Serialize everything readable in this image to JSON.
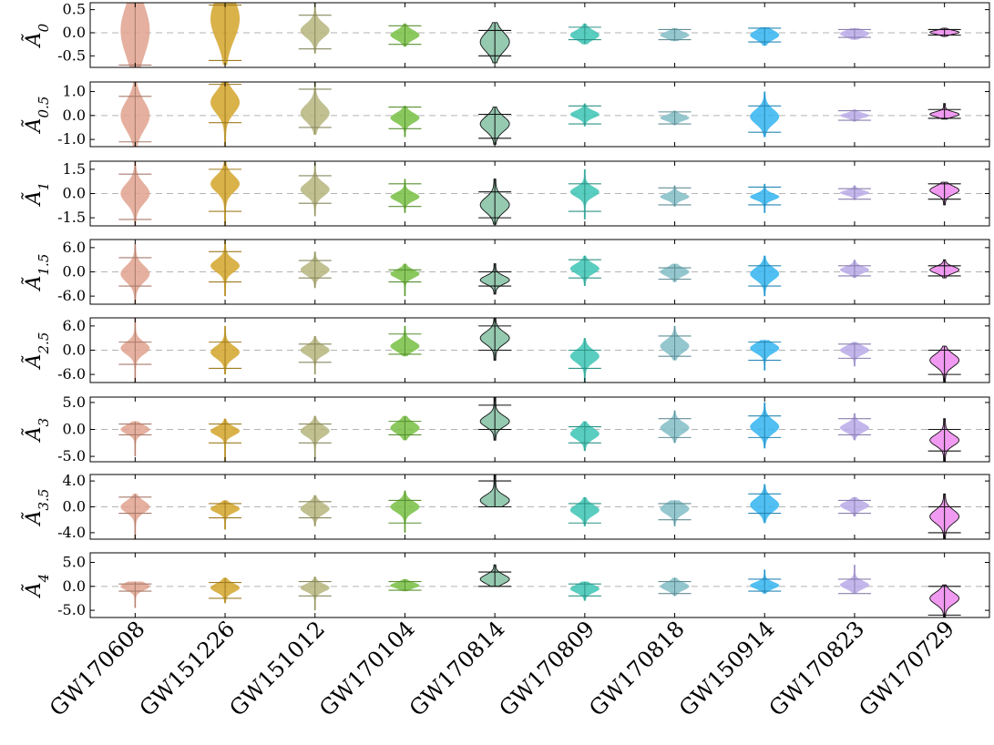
{
  "chart_data": {
    "type": "violin",
    "categories": [
      "GW170608",
      "GW151226",
      "GW151012",
      "GW170104",
      "GW170814",
      "GW170809",
      "GW170818",
      "GW150914",
      "GW170823",
      "GW170729"
    ],
    "colors": [
      "#e0a28e",
      "#d4a52a",
      "#b5b57e",
      "#77c043",
      "#82bfa2",
      "#3cc4b4",
      "#83bdc7",
      "#33b4f0",
      "#b8a9e8",
      "#ee88ee"
    ],
    "panels": [
      {
        "ylabel_main": "Ã",
        "ylabel_sub": "0",
        "ylim": [
          -0.75,
          0.65
        ],
        "yticks": [
          0.5,
          0.0,
          -0.5
        ],
        "ytick_labels": [
          "0.5",
          "0.0",
          "-0.5"
        ],
        "stats": [
          {
            "center": 0.05,
            "spread": 0.55,
            "min": -0.75,
            "max": 0.65,
            "q_low": -0.7,
            "q_high": 0.65
          },
          {
            "center": 0.3,
            "spread": 0.45,
            "min": -0.7,
            "max": 0.65,
            "q_low": -0.6,
            "q_high": 0.6
          },
          {
            "center": 0.05,
            "spread": 0.15,
            "min": -0.45,
            "max": 0.65,
            "q_low": -0.35,
            "q_high": 0.38
          },
          {
            "center": -0.05,
            "spread": 0.1,
            "min": -0.3,
            "max": 0.2,
            "q_low": -0.25,
            "q_high": 0.15
          },
          {
            "center": -0.2,
            "spread": 0.2,
            "min": -0.65,
            "max": 0.22,
            "q_low": -0.5,
            "q_high": 0.05
          },
          {
            "center": -0.05,
            "spread": 0.1,
            "min": -0.25,
            "max": 0.2,
            "q_low": -0.15,
            "q_high": 0.12
          },
          {
            "center": -0.05,
            "spread": 0.07,
            "min": -0.18,
            "max": 0.1,
            "q_low": -0.15,
            "q_high": 0.07
          },
          {
            "center": -0.05,
            "spread": 0.1,
            "min": -0.28,
            "max": 0.12,
            "q_low": -0.2,
            "q_high": 0.1
          },
          {
            "center": -0.02,
            "spread": 0.07,
            "min": -0.15,
            "max": 0.1,
            "q_low": -0.1,
            "q_high": 0.07
          },
          {
            "center": 0.01,
            "spread": 0.04,
            "min": -0.08,
            "max": 0.1,
            "q_low": -0.05,
            "q_high": 0.07
          }
        ]
      },
      {
        "ylabel_main": "Ã",
        "ylabel_sub": "0.5",
        "ylim": [
          -1.3,
          1.4
        ],
        "yticks": [
          1.0,
          0.0,
          -1.0
        ],
        "ytick_labels": [
          "1.0",
          "0.0",
          "-1.0"
        ],
        "stats": [
          {
            "center": 0.0,
            "spread": 0.6,
            "min": -1.3,
            "max": 1.4,
            "q_low": -1.1,
            "q_high": 0.8
          },
          {
            "center": 0.55,
            "spread": 0.45,
            "min": -1.3,
            "max": 1.4,
            "q_low": -0.3,
            "q_high": 1.3
          },
          {
            "center": 0.1,
            "spread": 0.35,
            "min": -0.8,
            "max": 1.4,
            "q_low": -0.5,
            "q_high": 1.1
          },
          {
            "center": -0.1,
            "spread": 0.2,
            "min": -0.9,
            "max": 0.4,
            "q_low": -0.55,
            "q_high": 0.35
          },
          {
            "center": -0.35,
            "spread": 0.3,
            "min": -1.2,
            "max": 0.35,
            "q_low": -0.95,
            "q_high": 0.05
          },
          {
            "center": 0.05,
            "spread": 0.15,
            "min": -0.45,
            "max": 0.5,
            "q_low": -0.35,
            "q_high": 0.4
          },
          {
            "center": -0.1,
            "spread": 0.12,
            "min": -0.4,
            "max": 0.2,
            "q_low": -0.35,
            "q_high": 0.15
          },
          {
            "center": -0.05,
            "spread": 0.3,
            "min": -0.9,
            "max": 1.0,
            "q_low": -0.7,
            "q_high": 0.4
          },
          {
            "center": 0.0,
            "spread": 0.1,
            "min": -0.25,
            "max": 0.25,
            "q_low": -0.2,
            "q_high": 0.2
          },
          {
            "center": 0.05,
            "spread": 0.1,
            "min": -0.15,
            "max": 0.5,
            "q_low": -0.12,
            "q_high": 0.25
          }
        ]
      },
      {
        "ylabel_main": "Ã",
        "ylabel_sub": "1",
        "ylim": [
          -2.0,
          2.0
        ],
        "yticks": [
          1.5,
          0.0,
          -1.5
        ],
        "ytick_labels": [
          "1.5",
          "0.0",
          "-1.5"
        ],
        "stats": [
          {
            "center": 0.0,
            "spread": 0.6,
            "min": -2.0,
            "max": 2.0,
            "q_low": -1.6,
            "q_high": 1.2
          },
          {
            "center": 0.6,
            "spread": 0.5,
            "min": -2.0,
            "max": 2.0,
            "q_low": -1.1,
            "q_high": 1.5
          },
          {
            "center": 0.25,
            "spread": 0.4,
            "min": -1.4,
            "max": 1.9,
            "q_low": -0.6,
            "q_high": 1.1
          },
          {
            "center": -0.2,
            "spread": 0.25,
            "min": -1.2,
            "max": 0.9,
            "q_low": -0.8,
            "q_high": 0.6
          },
          {
            "center": -0.7,
            "spread": 0.45,
            "min": -1.9,
            "max": 0.9,
            "q_low": -1.5,
            "q_high": 0.1
          },
          {
            "center": 0.1,
            "spread": 0.3,
            "min": -1.6,
            "max": 1.5,
            "q_low": -1.1,
            "q_high": 0.6
          },
          {
            "center": -0.2,
            "spread": 0.2,
            "min": -0.8,
            "max": 0.5,
            "q_low": -0.7,
            "q_high": 0.35
          },
          {
            "center": -0.2,
            "spread": 0.2,
            "min": -1.2,
            "max": 0.6,
            "q_low": -0.7,
            "q_high": 0.4
          },
          {
            "center": 0.05,
            "spread": 0.15,
            "min": -0.4,
            "max": 0.5,
            "q_low": -0.35,
            "q_high": 0.3
          },
          {
            "center": 0.2,
            "spread": 0.25,
            "min": -0.7,
            "max": 0.7,
            "q_low": -0.35,
            "q_high": 0.6
          }
        ]
      },
      {
        "ylabel_main": "Ã",
        "ylabel_sub": "1.5",
        "ylim": [
          -8.0,
          8.0
        ],
        "yticks": [
          6.0,
          0.0,
          -6.0
        ],
        "ytick_labels": [
          "6.0",
          "0.0",
          "-6.0"
        ],
        "stats": [
          {
            "center": -0.5,
            "spread": 2.0,
            "min": -8.0,
            "max": 7.0,
            "q_low": -3.5,
            "q_high": 3.5
          },
          {
            "center": 1.5,
            "spread": 1.5,
            "min": -6.0,
            "max": 8.0,
            "q_low": -2.5,
            "q_high": 5.0
          },
          {
            "center": 0.5,
            "spread": 1.3,
            "min": -4.0,
            "max": 5.0,
            "q_low": -1.5,
            "q_high": 2.8
          },
          {
            "center": -0.5,
            "spread": 1.0,
            "min": -6.0,
            "max": 2.0,
            "q_low": -2.5,
            "q_high": 0.5
          },
          {
            "center": -2.0,
            "spread": 1.0,
            "min": -5.5,
            "max": 2.0,
            "q_low": -3.5,
            "q_high": 0.0
          },
          {
            "center": 0.8,
            "spread": 1.2,
            "min": -3.5,
            "max": 4.0,
            "q_low": -1.5,
            "q_high": 3.0
          },
          {
            "center": 0.0,
            "spread": 1.0,
            "min": -2.5,
            "max": 2.0,
            "q_low": -1.8,
            "q_high": 1.0
          },
          {
            "center": -0.5,
            "spread": 1.5,
            "min": -6.0,
            "max": 4.0,
            "q_low": -3.5,
            "q_high": 1.5
          },
          {
            "center": 0.5,
            "spread": 0.8,
            "min": -1.5,
            "max": 3.0,
            "q_low": -1.0,
            "q_high": 1.5
          },
          {
            "center": 0.5,
            "spread": 0.8,
            "min": -1.5,
            "max": 3.0,
            "q_low": -1.0,
            "q_high": 1.5
          }
        ]
      },
      {
        "ylabel_main": "Ã",
        "ylabel_sub": "2.5",
        "ylim": [
          -8.0,
          8.0
        ],
        "yticks": [
          6.0,
          0.0,
          -6.0
        ],
        "ytick_labels": [
          "6.0",
          "0.0",
          "-6.0"
        ],
        "stats": [
          {
            "center": 0.5,
            "spread": 1.5,
            "min": -8.0,
            "max": 8.0,
            "q_low": -3.5,
            "q_high": 2.0
          },
          {
            "center": -0.5,
            "spread": 1.5,
            "min": -6.0,
            "max": 6.0,
            "q_low": -4.5,
            "q_high": 2.0
          },
          {
            "center": 0.0,
            "spread": 1.2,
            "min": -6.0,
            "max": 3.5,
            "q_low": -3.0,
            "q_high": 1.5
          },
          {
            "center": 1.0,
            "spread": 1.2,
            "min": -1.5,
            "max": 6.0,
            "q_low": -1.0,
            "q_high": 4.0
          },
          {
            "center": 3.0,
            "spread": 1.5,
            "min": -2.5,
            "max": 8.0,
            "q_low": 0.0,
            "q_high": 6.0
          },
          {
            "center": -1.5,
            "spread": 1.5,
            "min": -8.0,
            "max": 3.0,
            "q_low": -4.5,
            "q_high": 0.0
          },
          {
            "center": 1.0,
            "spread": 1.5,
            "min": -2.5,
            "max": 6.0,
            "q_low": -1.5,
            "q_high": 3.5
          },
          {
            "center": 0.5,
            "spread": 1.2,
            "min": -5.0,
            "max": 2.5,
            "q_low": -2.5,
            "q_high": 2.0
          },
          {
            "center": 0.0,
            "spread": 1.0,
            "min": -4.0,
            "max": 2.0,
            "q_low": -2.0,
            "q_high": 1.5
          },
          {
            "center": -2.5,
            "spread": 1.5,
            "min": -8.0,
            "max": 1.0,
            "q_low": -6.0,
            "q_high": 0.0
          }
        ]
      },
      {
        "ylabel_main": "Ã",
        "ylabel_sub": "3",
        "ylim": [
          -6.0,
          6.0
        ],
        "yticks": [
          5.0,
          0.0,
          -5.0
        ],
        "ytick_labels": [
          "5.0",
          "0.0",
          "-5.0"
        ],
        "stats": [
          {
            "center": 0.0,
            "spread": 0.8,
            "min": -5.0,
            "max": 1.5,
            "q_low": -1.0,
            "q_high": 1.0
          },
          {
            "center": -0.3,
            "spread": 0.8,
            "min": -6.0,
            "max": 2.0,
            "q_low": -2.5,
            "q_high": 1.0
          },
          {
            "center": -0.3,
            "spread": 1.0,
            "min": -5.5,
            "max": 2.5,
            "q_low": -2.5,
            "q_high": 1.0
          },
          {
            "center": 0.3,
            "spread": 1.0,
            "min": -2.0,
            "max": 2.5,
            "q_low": -1.0,
            "q_high": 1.5
          },
          {
            "center": 1.5,
            "spread": 1.0,
            "min": -2.0,
            "max": 6.0,
            "q_low": 0.0,
            "q_high": 4.5
          },
          {
            "center": -0.8,
            "spread": 1.0,
            "min": -4.0,
            "max": 1.5,
            "q_low": -2.5,
            "q_high": 0.5
          },
          {
            "center": 0.3,
            "spread": 1.0,
            "min": -2.5,
            "max": 3.5,
            "q_low": -1.5,
            "q_high": 2.0
          },
          {
            "center": 0.5,
            "spread": 1.2,
            "min": -3.5,
            "max": 5.0,
            "q_low": -1.5,
            "q_high": 2.5
          },
          {
            "center": 0.3,
            "spread": 0.8,
            "min": -2.0,
            "max": 3.0,
            "q_low": -1.0,
            "q_high": 2.0
          },
          {
            "center": -2.0,
            "spread": 1.0,
            "min": -6.0,
            "max": 2.0,
            "q_low": -4.0,
            "q_high": 0.0
          }
        ]
      },
      {
        "ylabel_main": "Ã",
        "ylabel_sub": "3.5",
        "ylim": [
          -5.0,
          5.0
        ],
        "yticks": [
          4.0,
          0.0,
          -4.0
        ],
        "ytick_labels": [
          "4.0",
          "0.0",
          "-4.0"
        ],
        "stats": [
          {
            "center": 0.0,
            "spread": 0.9,
            "min": -5.0,
            "max": 2.0,
            "q_low": -1.0,
            "q_high": 1.5
          },
          {
            "center": -0.3,
            "spread": 0.6,
            "min": -3.5,
            "max": 1.0,
            "q_low": -1.7,
            "q_high": 0.5
          },
          {
            "center": -0.3,
            "spread": 0.8,
            "min": -3.0,
            "max": 1.8,
            "q_low": -1.7,
            "q_high": 0.8
          },
          {
            "center": 0.0,
            "spread": 0.8,
            "min": -4.0,
            "max": 2.5,
            "q_low": -2.5,
            "q_high": 1.0
          },
          {
            "center": 1.0,
            "spread": 0.8,
            "min": 0.0,
            "max": 5.0,
            "q_low": 0.0,
            "q_high": 4.0
          },
          {
            "center": -0.5,
            "spread": 0.8,
            "min": -3.0,
            "max": 1.5,
            "q_low": -2.5,
            "q_high": 0.5
          },
          {
            "center": -0.3,
            "spread": 0.8,
            "min": -3.0,
            "max": 1.0,
            "q_low": -2.0,
            "q_high": 0.5
          },
          {
            "center": 0.3,
            "spread": 1.0,
            "min": -2.5,
            "max": 3.5,
            "q_low": -1.0,
            "q_high": 2.0
          },
          {
            "center": 0.2,
            "spread": 0.6,
            "min": -1.5,
            "max": 1.5,
            "q_low": -1.0,
            "q_high": 1.0
          },
          {
            "center": -1.5,
            "spread": 1.0,
            "min": -5.0,
            "max": 2.0,
            "q_low": -4.0,
            "q_high": 0.0
          }
        ]
      },
      {
        "ylabel_main": "Ã",
        "ylabel_sub": "4",
        "ylim": [
          -6.5,
          7.0
        ],
        "yticks": [
          5.0,
          0.0,
          -5.0
        ],
        "ytick_labels": [
          "5.0",
          "0.0",
          "-5.0"
        ],
        "stats": [
          {
            "center": 0.0,
            "spread": 0.8,
            "min": -4.5,
            "max": 1.0,
            "q_low": -1.0,
            "q_high": 0.5
          },
          {
            "center": -0.3,
            "spread": 0.9,
            "min": -3.5,
            "max": 1.8,
            "q_low": -2.5,
            "q_high": 0.8
          },
          {
            "center": -0.3,
            "spread": 0.8,
            "min": -5.0,
            "max": 2.0,
            "q_low": -2.0,
            "q_high": 1.0
          },
          {
            "center": 0.2,
            "spread": 0.6,
            "min": -1.0,
            "max": 1.5,
            "q_low": -0.8,
            "q_high": 1.0
          },
          {
            "center": 1.5,
            "spread": 0.9,
            "min": 0.0,
            "max": 4.5,
            "q_low": 0.0,
            "q_high": 3.0
          },
          {
            "center": -0.5,
            "spread": 0.8,
            "min": -3.0,
            "max": 1.0,
            "q_low": -2.0,
            "q_high": 0.5
          },
          {
            "center": 0.0,
            "spread": 0.8,
            "min": -2.0,
            "max": 1.8,
            "q_low": -1.5,
            "q_high": 1.0
          },
          {
            "center": 0.2,
            "spread": 0.7,
            "min": -1.5,
            "max": 3.5,
            "q_low": -1.0,
            "q_high": 1.5
          },
          {
            "center": 0.3,
            "spread": 0.8,
            "min": -1.5,
            "max": 4.5,
            "q_low": -1.5,
            "q_high": 1.5
          },
          {
            "center": -2.5,
            "spread": 1.2,
            "min": -6.5,
            "max": 0.3,
            "q_low": -6.0,
            "q_high": 0.0
          }
        ]
      }
    ],
    "grid": false,
    "legend": "none"
  }
}
